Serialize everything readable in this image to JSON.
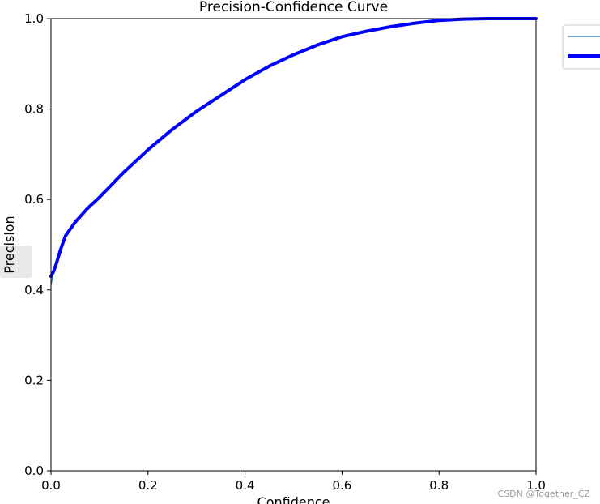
{
  "chart_data": {
    "type": "line",
    "title": "Precision-Confidence Curve",
    "xlabel": "Confidence",
    "ylabel": "Precision",
    "xlim": [
      0,
      1
    ],
    "ylim": [
      0,
      1
    ],
    "xticks": [
      "0.0",
      "0.2",
      "0.4",
      "0.6",
      "0.8",
      "1.0"
    ],
    "yticks": [
      "0.0",
      "0.2",
      "0.4",
      "0.6",
      "0.8",
      "1.0"
    ],
    "grid": false,
    "legend_placement": "outside upper right",
    "series": [
      {
        "color": "#1f77b4",
        "linewidth": "thin",
        "x": [
          0.0,
          0.005,
          0.01,
          0.02,
          0.03,
          0.05,
          0.075,
          0.1,
          0.15,
          0.2,
          0.25,
          0.3,
          0.35,
          0.4,
          0.45,
          0.5,
          0.55,
          0.6,
          0.65,
          0.7,
          0.75,
          0.8,
          0.85,
          0.9,
          1.0
        ],
        "y": [
          0.41,
          0.44,
          0.455,
          0.49,
          0.52,
          0.55,
          0.58,
          0.605,
          0.66,
          0.71,
          0.755,
          0.795,
          0.83,
          0.865,
          0.895,
          0.92,
          0.942,
          0.96,
          0.972,
          0.982,
          0.99,
          0.996,
          0.999,
          1.0,
          1.0
        ]
      },
      {
        "color": "#0000ff",
        "linewidth": "thick",
        "x": [
          0.0,
          0.005,
          0.01,
          0.02,
          0.03,
          0.05,
          0.075,
          0.1,
          0.15,
          0.2,
          0.25,
          0.3,
          0.35,
          0.4,
          0.45,
          0.5,
          0.55,
          0.6,
          0.65,
          0.7,
          0.75,
          0.8,
          0.85,
          0.9,
          1.0
        ],
        "y": [
          0.43,
          0.44,
          0.455,
          0.49,
          0.52,
          0.55,
          0.58,
          0.605,
          0.66,
          0.71,
          0.755,
          0.795,
          0.83,
          0.865,
          0.895,
          0.92,
          0.942,
          0.96,
          0.972,
          0.982,
          0.99,
          0.996,
          0.999,
          1.0,
          1.0
        ]
      }
    ]
  },
  "watermark": "CSDN @Together_CZ"
}
